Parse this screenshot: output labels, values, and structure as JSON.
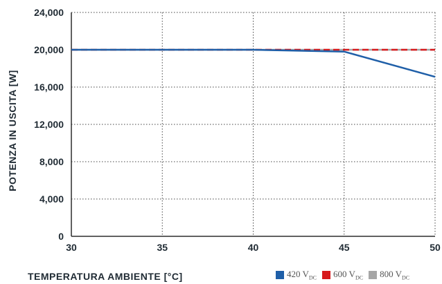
{
  "chart_data": {
    "type": "line",
    "title": "",
    "xlabel": "TEMPERATURA AMBIENTE [°C]",
    "ylabel": "POTENZA IN USCITA [W]",
    "xlim": [
      30,
      50
    ],
    "ylim": [
      0,
      24000
    ],
    "x_ticks": [
      "30",
      "35",
      "40",
      "45",
      "50"
    ],
    "y_ticks": [
      "0",
      "4,000",
      "8,000",
      "12,000",
      "16,000",
      "20,000",
      "24,000"
    ],
    "grid": true,
    "legend_position": "bottom-right",
    "series": [
      {
        "name": "800 V",
        "name_sub": "DC",
        "color": "#a6a6a6",
        "x": [
          30,
          50
        ],
        "y": [
          20000,
          20000
        ]
      },
      {
        "name": "600 V",
        "name_sub": "DC",
        "color": "#d7191c",
        "dashed": true,
        "x": [
          30,
          50
        ],
        "y": [
          20000,
          20000
        ]
      },
      {
        "name": "420 V",
        "name_sub": "DC",
        "color": "#1f5fa8",
        "x": [
          30,
          40,
          45,
          50
        ],
        "y": [
          20000,
          20000,
          19800,
          17100
        ]
      }
    ]
  }
}
